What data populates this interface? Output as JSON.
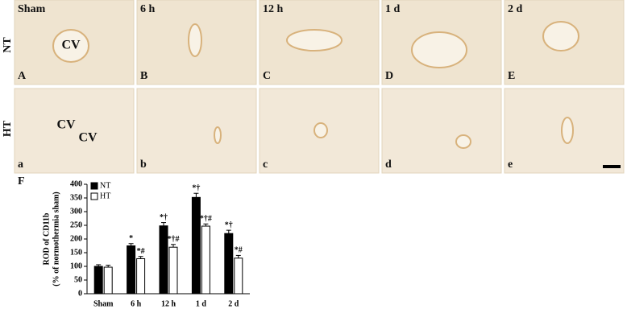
{
  "panels": {
    "row_labels": [
      "NT",
      "HT"
    ],
    "column_labels": [
      "Sham",
      "6 h",
      "12 h",
      "1 d",
      "2 d"
    ],
    "top_letters": [
      "A",
      "B",
      "C",
      "D",
      "E"
    ],
    "bottom_letters": [
      "a",
      "b",
      "c",
      "d",
      "e"
    ],
    "vessel_labels": [
      "CV",
      "CV",
      "CV"
    ]
  },
  "chart_data": {
    "type": "bar",
    "panel_label": "F",
    "y_label": [
      "ROD of CD11b",
      "(% of normothermia sham)"
    ],
    "categories": [
      "Sham",
      "6 h",
      "12 h",
      "1 d",
      "2 d"
    ],
    "series": [
      {
        "name": "NT",
        "color": "#000000",
        "values": [
          100,
          175,
          248,
          352,
          220
        ],
        "errors": [
          6,
          8,
          12,
          15,
          12
        ],
        "annotations": [
          null,
          "*",
          "*†",
          "*†",
          "*†"
        ]
      },
      {
        "name": "HT",
        "color": "#ffffff",
        "values": [
          97,
          128,
          170,
          247,
          130
        ],
        "errors": [
          7,
          8,
          10,
          8,
          10
        ],
        "annotations": [
          null,
          "*#",
          "*†#",
          "*†#",
          "*#"
        ]
      }
    ],
    "ylim": [
      0,
      400
    ],
    "yticks": [
      0,
      50,
      100,
      150,
      200,
      250,
      300,
      350,
      400
    ],
    "legend": "upper left"
  }
}
